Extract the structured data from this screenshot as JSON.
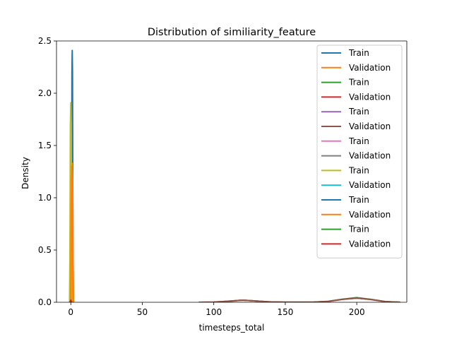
{
  "chart_data": {
    "type": "line",
    "title": "Distribution of similiarity_feature",
    "xlabel": "timesteps_total",
    "ylabel": "Density",
    "xlim": [
      -10,
      235
    ],
    "ylim": [
      0,
      2.5
    ],
    "xticks": [
      0,
      50,
      100,
      150,
      200
    ],
    "yticks": [
      0.0,
      0.5,
      1.0,
      1.5,
      2.0,
      2.5
    ],
    "xtick_labels": [
      "0",
      "50",
      "100",
      "150",
      "200"
    ],
    "ytick_labels": [
      "0.0",
      "0.5",
      "1.0",
      "1.5",
      "2.0",
      "2.5"
    ],
    "grid": false,
    "legend_position": "upper right",
    "series": [
      {
        "name": "Train",
        "color": "#1f77b4",
        "x": [
          0.2,
          0.5,
          0.8,
          1.0,
          1.2,
          1.5,
          1.8
        ],
        "y": [
          0,
          0.6,
          2.2,
          2.41,
          2.2,
          0.6,
          0
        ]
      },
      {
        "name": "Validation",
        "color": "#ff7f0e",
        "x": [
          0.1,
          0.4,
          0.7,
          1.0,
          1.3,
          1.6,
          1.9
        ],
        "y": [
          0,
          0.4,
          1.2,
          1.33,
          1.2,
          0.4,
          0
        ]
      },
      {
        "name": "Train",
        "color": "#2ca02c",
        "x": [
          90,
          100,
          110,
          120,
          130,
          140,
          150,
          160,
          170,
          180,
          190,
          200,
          210,
          220,
          230
        ],
        "y": [
          0,
          0.001,
          0.008,
          0.02,
          0.012,
          0.003,
          0.001,
          0.001,
          0.002,
          0.009,
          0.03,
          0.045,
          0.028,
          0.007,
          0
        ]
      },
      {
        "name": "Validation",
        "color": "#d62728",
        "x": [
          90,
          100,
          110,
          120,
          130,
          140,
          150,
          160,
          170,
          180,
          190,
          200,
          210,
          220,
          230
        ],
        "y": [
          0,
          0.002,
          0.01,
          0.02,
          0.012,
          0.003,
          0.001,
          0.001,
          0.002,
          0.008,
          0.028,
          0.04,
          0.026,
          0.006,
          0
        ]
      },
      {
        "name": "Train",
        "color": "#9467bd",
        "x": [
          -0.5,
          0,
          0.5
        ],
        "y": [
          0,
          0.05,
          0
        ]
      },
      {
        "name": "Validation",
        "color": "#8c564b",
        "x": [
          90,
          100,
          110,
          120,
          130,
          140,
          150,
          160,
          170,
          180,
          190,
          200,
          210,
          220,
          230
        ],
        "y": [
          0,
          0.002,
          0.01,
          0.02,
          0.012,
          0.003,
          0.001,
          0.001,
          0.002,
          0.008,
          0.028,
          0.04,
          0.026,
          0.006,
          0
        ]
      },
      {
        "name": "Train",
        "color": "#e377c2",
        "x": [
          -0.5,
          0,
          0.5
        ],
        "y": [
          0,
          0.08,
          0
        ]
      },
      {
        "name": "Validation",
        "color": "#7f7f7f",
        "x": [
          -0.6,
          -0.3,
          0,
          0.3,
          0.6
        ],
        "y": [
          0,
          0.1,
          0.21,
          0.1,
          0
        ]
      },
      {
        "name": "Train",
        "color": "#bcbd22",
        "x": [
          -0.9,
          -0.6,
          -0.3,
          0,
          0.3,
          0.6,
          0.9
        ],
        "y": [
          0,
          0.5,
          1.7,
          1.91,
          1.7,
          0.5,
          0
        ]
      },
      {
        "name": "Validation",
        "color": "#17becf",
        "x": [
          -0.5,
          0,
          0.5
        ],
        "y": [
          0,
          0.03,
          0
        ]
      },
      {
        "name": "Train",
        "color": "#1f77b4",
        "x": [
          -0.5,
          0,
          0.5
        ],
        "y": [
          0,
          0.02,
          0
        ]
      },
      {
        "name": "Validation",
        "color": "#ff7f0e",
        "x": [
          -0.2,
          0.1,
          0.4,
          0.7,
          1.0,
          1.3,
          1.6
        ],
        "y": [
          0,
          0.35,
          1.1,
          1.3,
          1.1,
          0.35,
          0
        ]
      },
      {
        "name": "Train",
        "color": "#2ca02c",
        "x": [
          -0.5,
          0,
          0.5
        ],
        "y": [
          0,
          0.02,
          0
        ]
      },
      {
        "name": "Validation",
        "color": "#d62728",
        "x": [
          -0.5,
          0,
          0.5
        ],
        "y": [
          0,
          0.02,
          0
        ]
      }
    ]
  }
}
